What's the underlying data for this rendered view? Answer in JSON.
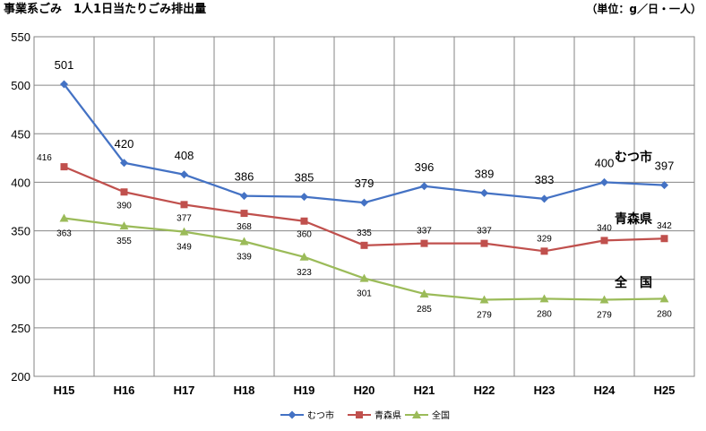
{
  "title": "事業系ごみ　1人1日当たりごみ排出量",
  "unit": "（単位：g／日・一人）",
  "chart_data": {
    "type": "line",
    "categories": [
      "H15",
      "H16",
      "H17",
      "H18",
      "H19",
      "H20",
      "H21",
      "H22",
      "H23",
      "H24",
      "H25"
    ],
    "ylim": [
      200,
      550
    ],
    "yticks": [
      200,
      250,
      300,
      350,
      400,
      450,
      500,
      550
    ],
    "grid": true,
    "legend_position": "bottom",
    "series": [
      {
        "name": "むつ市",
        "color": "#4472C4",
        "marker": "diamond",
        "values": [
          501,
          420,
          408,
          386,
          385,
          379,
          396,
          389,
          383,
          400,
          397
        ]
      },
      {
        "name": "青森県",
        "color": "#C0504D",
        "marker": "square",
        "values": [
          416,
          390,
          377,
          368,
          360,
          335,
          337,
          337,
          329,
          340,
          342
        ]
      },
      {
        "name": "全国",
        "color": "#9BBB59",
        "marker": "triangle",
        "values": [
          363,
          355,
          349,
          339,
          323,
          301,
          285,
          279,
          280,
          279,
          280
        ]
      }
    ],
    "annotations": [
      "むつ市",
      "青森県",
      "全　国"
    ]
  }
}
